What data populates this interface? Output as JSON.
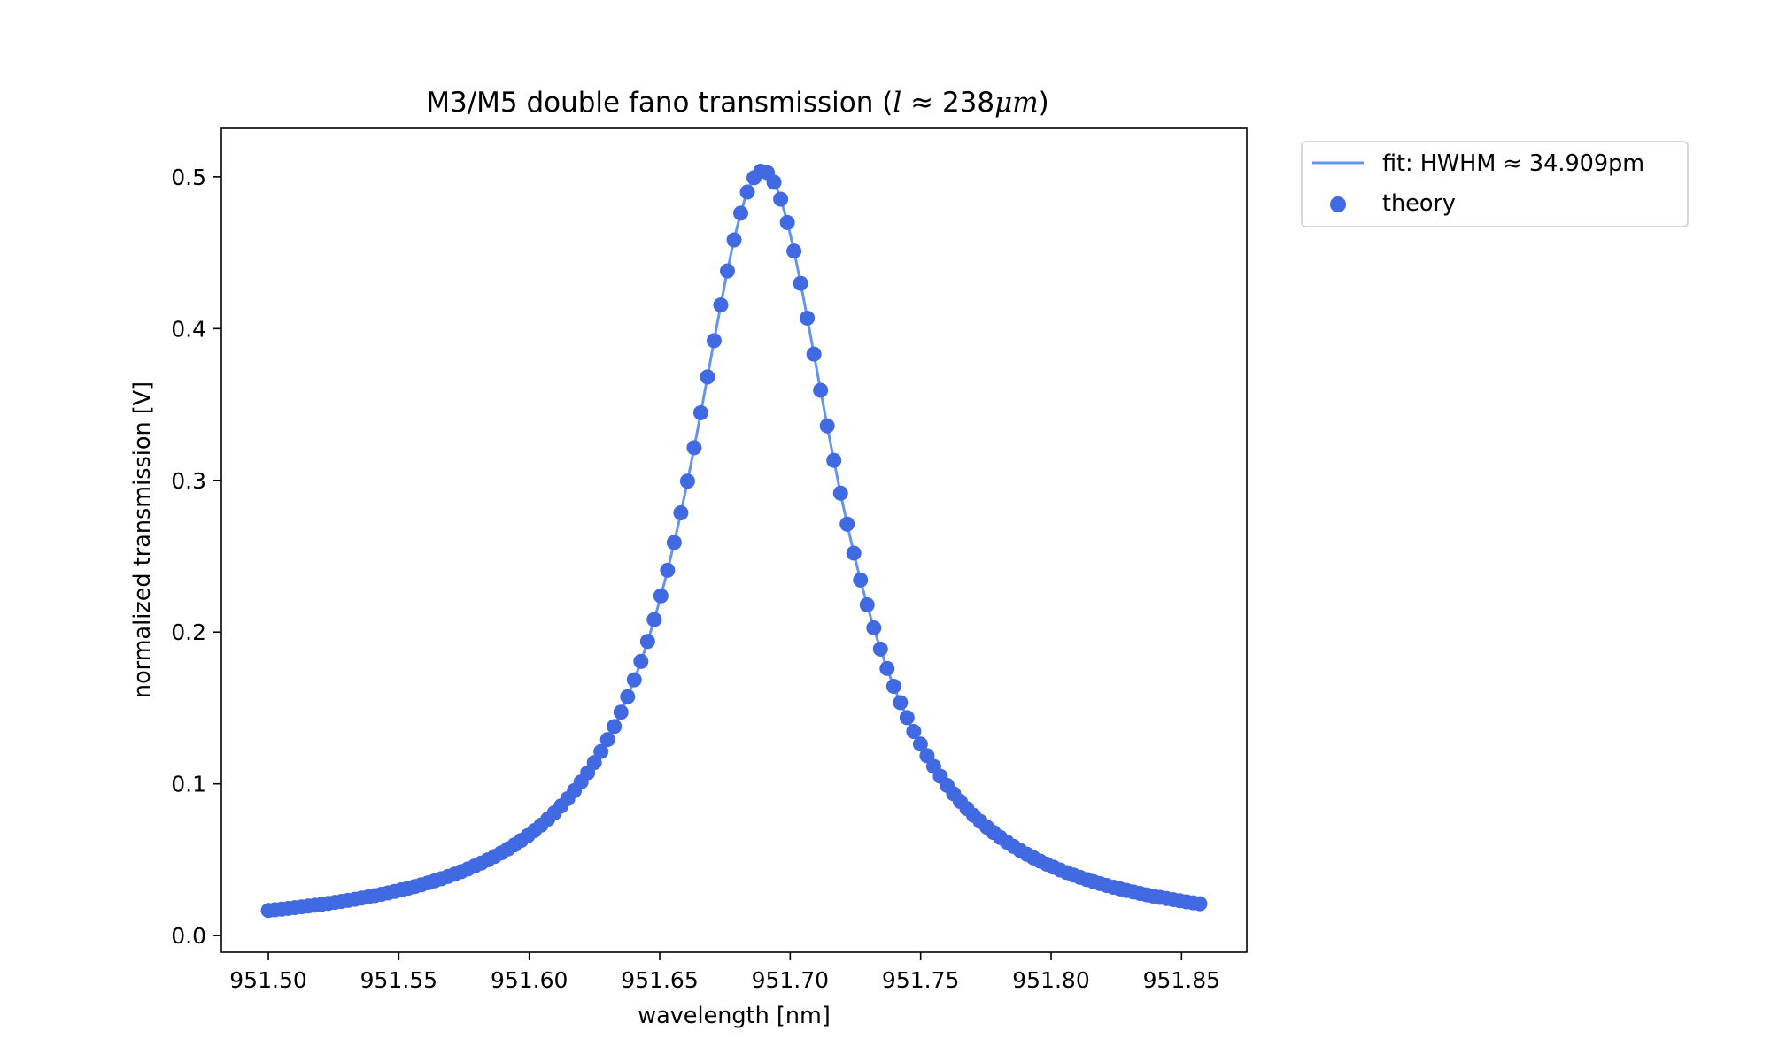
{
  "chart_data": {
    "type": "scatter",
    "title": "M3/M5 double fano transmission (l ≈ 238μm)",
    "title_parts": {
      "prefix": "M3/M5 double fano transmission (",
      "var": "l",
      "approx": " ≈ ",
      "number": "238",
      "unit": "μm",
      "suffix": ")"
    },
    "xlabel": "wavelength [nm]",
    "ylabel": "normalized transmission [V]",
    "xlim": [
      951.482,
      951.875
    ],
    "ylim": [
      -0.011,
      0.532
    ],
    "xticks": [
      951.5,
      951.55,
      951.6,
      951.65,
      951.7,
      951.75,
      951.8,
      951.85
    ],
    "xtick_labels": [
      "951.50",
      "951.55",
      "951.60",
      "951.65",
      "951.70",
      "951.75",
      "951.80",
      "951.85"
    ],
    "yticks": [
      0.0,
      0.1,
      0.2,
      0.3,
      0.4,
      0.5
    ],
    "ytick_labels": [
      "0.0",
      "0.1",
      "0.2",
      "0.3",
      "0.4",
      "0.5"
    ],
    "grid": false,
    "legend_position": "outside top-right",
    "model": {
      "kind": "lorentzian",
      "center_nm": 951.6895,
      "hwhm_nm": 0.034909,
      "peak": 0.504,
      "offset": 0.0,
      "x_start": 951.5,
      "x_end": 951.857,
      "theory_points": 141
    },
    "series": [
      {
        "name": "fit: HWHM ≈ 34.909pm",
        "type": "line",
        "color": "#6495ed"
      },
      {
        "name": "theory",
        "type": "scatter",
        "color": "#4169e1"
      }
    ]
  }
}
